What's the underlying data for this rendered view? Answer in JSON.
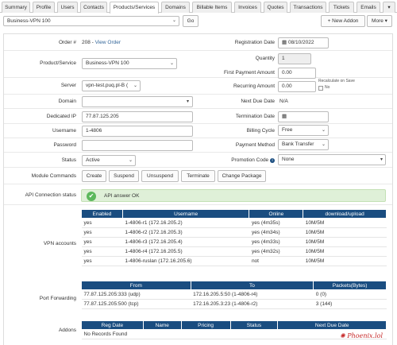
{
  "tabs": [
    "Summary",
    "Profile",
    "Users",
    "Contacts",
    "Products/Services",
    "Domains",
    "Billable Items",
    "Invoices",
    "Quotes",
    "Transactions",
    "Tickets",
    "Emails"
  ],
  "toolbar": {
    "product_select": "Business-VPN 100",
    "go_label": "Go",
    "new_addon_label": "New Addon",
    "more_label": "More"
  },
  "left": {
    "order_label": "Order #",
    "order_value": "208 - ",
    "order_link": "View Order",
    "product_label": "Product/Service",
    "product_value": "Business-VPN 100",
    "server_label": "Server",
    "server_value": "vpn-test.puq.pl-B (",
    "domain_label": "Domain",
    "domain_value": "",
    "dedicated_ip_label": "Dedicated IP",
    "dedicated_ip_value": "77.87.125.205",
    "username_label": "Username",
    "username_value": "1-4806",
    "password_label": "Password",
    "password_value": "",
    "status_label": "Status",
    "status_value": "Active"
  },
  "right": {
    "reg_date_label": "Registration Date",
    "reg_date_value": "08/10/2022",
    "quantity_label": "Quantity",
    "quantity_value": "1",
    "first_payment_label": "First Payment Amount",
    "first_payment_value": "0.00",
    "recurring_label": "Recurring Amount",
    "recurring_value": "0.00",
    "recalc_label": "Recalculate on Save",
    "recalc_option": "No",
    "next_due_label": "Next Due Date",
    "next_due_value": "N/A",
    "termination_label": "Termination Date",
    "termination_value": "",
    "billing_cycle_label": "Billing Cycle",
    "billing_cycle_value": "Free",
    "payment_method_label": "Payment Method",
    "payment_method_value": "Bank Transfer",
    "promo_label": "Promotion Code",
    "promo_value": "None"
  },
  "module": {
    "label": "Module Commands",
    "buttons": [
      "Create",
      "Suspend",
      "Unsuspend",
      "Terminate",
      "Change Package"
    ]
  },
  "api": {
    "label": "API Connection status",
    "message": "API answer OK"
  },
  "vpn": {
    "label": "VPN accounts",
    "headers": [
      "Enabled",
      "Username",
      "Online",
      "download/upload"
    ],
    "rows": [
      [
        "yes",
        "1-4806-r1 (172.16.205.2)",
        "yes (4m35s)",
        "10M/5M"
      ],
      [
        "yes",
        "1-4806-r2 (172.16.205.3)",
        "yes (4m34s)",
        "10M/5M"
      ],
      [
        "yes",
        "1-4806-r3 (172.16.205.4)",
        "yes (4m33s)",
        "10M/5M"
      ],
      [
        "yes",
        "1-4806-r4 (172.16.205.5)",
        "yes (4m32s)",
        "10M/5M"
      ],
      [
        "yes",
        "1-4806-ruslan (172.16.205.6)",
        "not",
        "10M/5M"
      ]
    ]
  },
  "port_forwarding": {
    "label": "Port Forwarding",
    "headers": [
      "From",
      "To",
      "Packets(Bytes)"
    ],
    "rows": [
      [
        "77.87.125.205:333 (udp)",
        "172.16.205.5:50 (1-4806-r4)",
        "0 (0)"
      ],
      [
        "77.87.125.205:500 (tcp)",
        "172.16.205.3:23 (1-4806-r2)",
        "3 (144)"
      ]
    ]
  },
  "addons": {
    "label": "Addons",
    "headers": [
      "Reg Date",
      "Name",
      "Pricing",
      "Status",
      "Next Due Date"
    ],
    "empty": "No Records Found"
  },
  "watermark": "Phoenix.lol",
  "colors": {
    "header": "#1a4d80",
    "ok_bg": "#dff0d8",
    "ok_icon": "#5cb85c",
    "link": "#336699"
  }
}
